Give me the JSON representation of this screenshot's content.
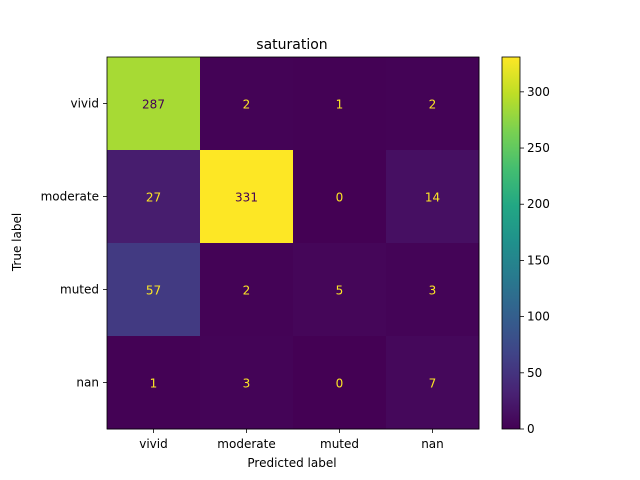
{
  "chart_data": {
    "type": "heatmap",
    "title": "saturation",
    "xlabel": "Predicted label",
    "ylabel": "True label",
    "x_categories": [
      "vivid",
      "moderate",
      "muted",
      "nan"
    ],
    "y_categories": [
      "vivid",
      "moderate",
      "muted",
      "nan"
    ],
    "values": [
      [
        287,
        2,
        1,
        2
      ],
      [
        27,
        331,
        0,
        14
      ],
      [
        57,
        2,
        5,
        3
      ],
      [
        1,
        3,
        0,
        7
      ]
    ],
    "colormap": "viridis",
    "value_range": [
      0,
      331
    ],
    "colorbar_ticks": [
      0,
      50,
      100,
      150,
      200,
      250,
      300
    ],
    "text_color_dark_cells": "#fde725",
    "text_color_light_cells": "#440154"
  }
}
